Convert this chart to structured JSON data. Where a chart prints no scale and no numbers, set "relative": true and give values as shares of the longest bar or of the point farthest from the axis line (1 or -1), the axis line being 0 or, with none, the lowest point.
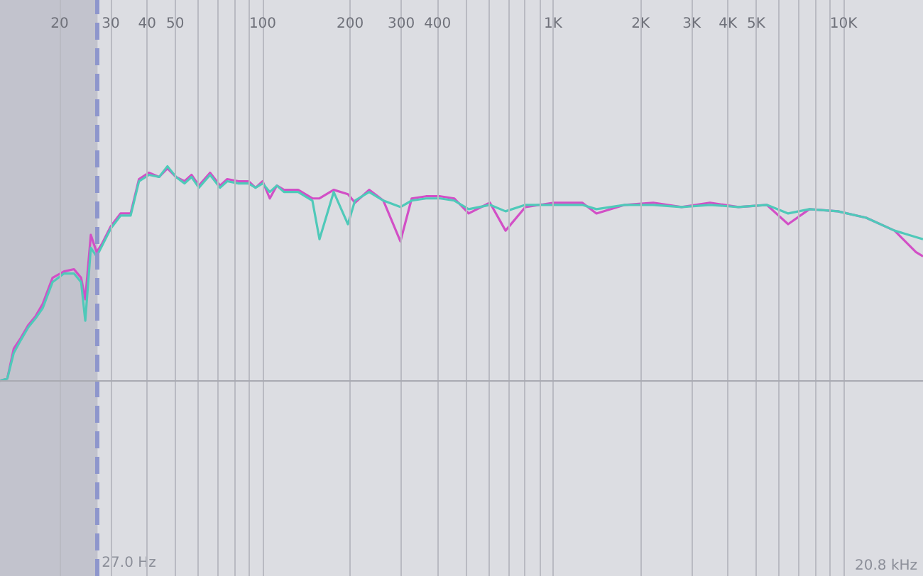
{
  "chart_data": {
    "type": "line",
    "relative": true,
    "log": "x",
    "grid": true,
    "marker": "none",
    "line_style": "solid",
    "tick_labels": "x",
    "xlim": [
      12.46,
      18780
    ],
    "xticks": [
      20,
      30,
      40,
      50,
      {
        "value": 60,
        "label": null
      },
      {
        "value": 70,
        "label": null
      },
      {
        "value": 80,
        "label": null
      },
      {
        "value": 90,
        "label": null
      },
      100,
      200,
      300,
      400,
      {
        "value": 500,
        "label": null
      },
      {
        "value": 600,
        "label": null
      },
      {
        "value": 700,
        "label": null
      },
      {
        "value": 800,
        "label": null
      },
      {
        "value": 900,
        "label": null
      },
      {
        "value": 1000,
        "label": "1K"
      },
      {
        "value": 2000,
        "label": "2K"
      },
      {
        "value": 3000,
        "label": "3K"
      },
      {
        "value": 4000,
        "label": "4K"
      },
      {
        "value": 5000,
        "label": "5K"
      },
      {
        "value": 6000,
        "label": null
      },
      {
        "value": 7000,
        "label": null
      },
      {
        "value": 8000,
        "label": null
      },
      {
        "value": 9000,
        "label": null
      },
      {
        "value": 10000,
        "label": "10K"
      }
    ],
    "x": [
      12.46,
      13.2,
      13.9,
      14.7,
      15.6,
      16.5,
      17.5,
      18.9,
      20.7,
      22.4,
      23.7,
      24.5,
      25.6,
      26.8,
      28.0,
      30.0,
      32.4,
      35.1,
      37.5,
      40.6,
      44.0,
      47.0,
      50.3,
      53.8,
      56.9,
      60.3,
      65.9,
      71.3,
      75.5,
      82.6,
      89.4,
      94.5,
      100,
      105.8,
      111.9,
      118.4,
      132.5,
      148.3,
      156.9,
      175.6,
      196.6,
      207.9,
      232.6,
      260.4,
      298,
      326,
      365,
      409,
      457,
      512,
      606,
      686,
      803,
      1006,
      1260,
      1410,
      1766,
      2212,
      2770,
      3470,
      4346,
      5443,
      6446,
      7632,
      9560,
      11970,
      14990,
      17760,
      18780
    ],
    "series": [
      {
        "color": "#d24fc6",
        "values": [
          0,
          0.01,
          0.15,
          0.2,
          0.26,
          0.3,
          0.36,
          0.48,
          0.51,
          0.52,
          0.48,
          0.38,
          0.68,
          0.6,
          0.64,
          0.72,
          0.78,
          0.78,
          0.94,
          0.97,
          0.95,
          0.99,
          0.95,
          0.93,
          0.96,
          0.91,
          0.97,
          0.91,
          0.94,
          0.93,
          0.93,
          0.9,
          0.93,
          0.85,
          0.91,
          0.89,
          0.89,
          0.85,
          0.85,
          0.89,
          0.87,
          0.83,
          0.89,
          0.84,
          0.65,
          0.85,
          0.86,
          0.86,
          0.85,
          0.78,
          0.83,
          0.7,
          0.81,
          0.83,
          0.83,
          0.78,
          0.82,
          0.83,
          0.81,
          0.83,
          0.81,
          0.82,
          0.73,
          0.8,
          0.79,
          0.76,
          0.7,
          0.6,
          0.58
        ]
      },
      {
        "color": "#4fc9b9",
        "values": [
          0,
          0.01,
          0.13,
          0.19,
          0.25,
          0.29,
          0.34,
          0.46,
          0.5,
          0.5,
          0.46,
          0.28,
          0.62,
          0.58,
          0.63,
          0.71,
          0.77,
          0.77,
          0.93,
          0.96,
          0.95,
          1,
          0.95,
          0.92,
          0.95,
          0.9,
          0.96,
          0.9,
          0.93,
          0.92,
          0.92,
          0.9,
          0.92,
          0.88,
          0.91,
          0.88,
          0.88,
          0.84,
          0.66,
          0.88,
          0.73,
          0.84,
          0.88,
          0.84,
          0.81,
          0.84,
          0.85,
          0.85,
          0.84,
          0.8,
          0.82,
          0.79,
          0.82,
          0.82,
          0.82,
          0.8,
          0.82,
          0.82,
          0.81,
          0.82,
          0.81,
          0.82,
          0.78,
          0.8,
          0.79,
          0.76,
          0.7,
          0.67,
          0.66
        ]
      }
    ],
    "bands": [
      {
        "axis": "x",
        "from": 12.46,
        "to": 27,
        "color": "#b9bac5"
      }
    ],
    "ref_lines": [
      {
        "axis": "x",
        "value": 27,
        "label": "27.0 Hz",
        "color": "#8e96cc",
        "line_style": "dashed"
      }
    ],
    "annotations": [
      "20.8 kHz"
    ]
  }
}
